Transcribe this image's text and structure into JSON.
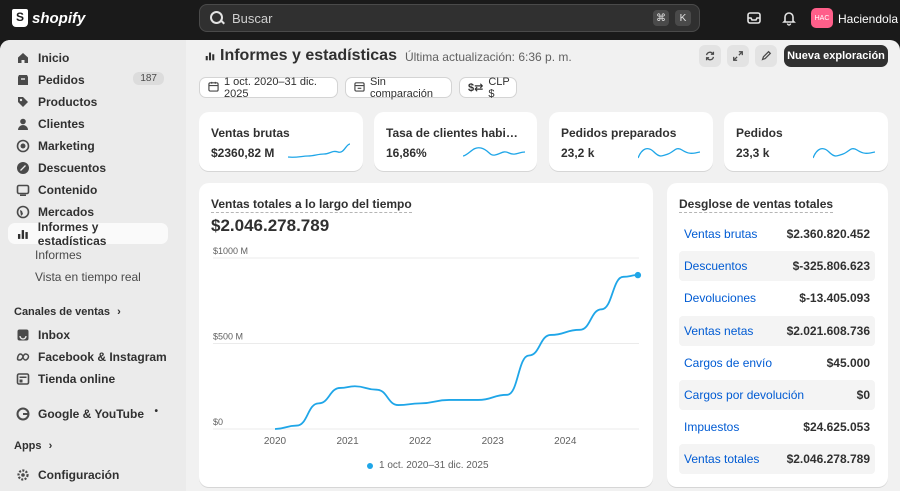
{
  "topbar": {
    "logo": "shopify",
    "search_placeholder": "Buscar",
    "kbd1": "⌘",
    "kbd2": "K",
    "avatar_initials": "HAC",
    "store_name": "Haciendola"
  },
  "sidebar": {
    "items": [
      {
        "label": "Inicio",
        "icon": "home-icon"
      },
      {
        "label": "Pedidos",
        "icon": "orders-icon",
        "badge": "187"
      },
      {
        "label": "Productos",
        "icon": "tag-icon"
      },
      {
        "label": "Clientes",
        "icon": "person-icon"
      },
      {
        "label": "Marketing",
        "icon": "target-icon"
      },
      {
        "label": "Descuentos",
        "icon": "discount-icon"
      },
      {
        "label": "Contenido",
        "icon": "content-icon"
      },
      {
        "label": "Mercados",
        "icon": "globe-icon"
      },
      {
        "label": "Informes y estadísticas",
        "icon": "chart-icon"
      }
    ],
    "sub_items": [
      "Informes",
      "Vista en tiempo real"
    ],
    "channels_header": "Canales de ventas",
    "channels": [
      {
        "label": "Inbox",
        "icon": "inbox-icon"
      },
      {
        "label": "Facebook & Instagram",
        "icon": "meta-icon"
      },
      {
        "label": "Tienda online",
        "icon": "store-icon"
      }
    ],
    "google": "Google & YouTube",
    "apps_header": "Apps",
    "settings": "Configuración"
  },
  "header": {
    "title": "Informes y estadísticas",
    "updated": "Última actualización: 6:36 p. m.",
    "primary_button": "Nueva exploración"
  },
  "filters": {
    "date_range": "1 oct. 2020–31 dic. 2025",
    "comparison": "Sin comparación",
    "currency": "CLP $"
  },
  "kpis": [
    {
      "title": "Ventas brutas",
      "value": "$2360,82 M"
    },
    {
      "title": "Tasa de clientes habituales",
      "value": "16,86%"
    },
    {
      "title": "Pedidos preparados",
      "value": "23,2 k"
    },
    {
      "title": "Pedidos",
      "value": "23,3 k"
    }
  ],
  "chart": {
    "title": "Ventas totales a lo largo del tiempo",
    "total": "$2.046.278.789",
    "legend": "1 oct. 2020–31 dic. 2025",
    "color": "#1fa6e8"
  },
  "chart_data": {
    "type": "line",
    "title": "Ventas totales a lo largo del tiempo",
    "x_ticks": [
      "2020",
      "2021",
      "2022",
      "2023",
      "2024"
    ],
    "y_ticks": [
      "$1000 M",
      "$500 M",
      "$0"
    ],
    "ylim": [
      0,
      1000
    ],
    "series": [
      {
        "name": "1 oct. 2020–31 dic. 2025",
        "points": [
          [
            2020.0,
            0
          ],
          [
            2020.3,
            20
          ],
          [
            2020.6,
            150
          ],
          [
            2020.9,
            240
          ],
          [
            2021.1,
            250
          ],
          [
            2021.4,
            230
          ],
          [
            2021.7,
            140
          ],
          [
            2022.0,
            150
          ],
          [
            2022.4,
            170
          ],
          [
            2022.8,
            170
          ],
          [
            2023.2,
            200
          ],
          [
            2023.5,
            430
          ],
          [
            2023.8,
            550
          ],
          [
            2024.2,
            580
          ],
          [
            2024.5,
            700
          ],
          [
            2024.8,
            890
          ],
          [
            2025.0,
            900
          ]
        ]
      }
    ],
    "grid": true
  },
  "breakdown": {
    "title": "Desglose de ventas totales",
    "rows": [
      {
        "label": "Ventas brutas",
        "value": "$2.360.820.452"
      },
      {
        "label": "Descuentos",
        "value": "$-325.806.623"
      },
      {
        "label": "Devoluciones",
        "value": "$-13.405.093"
      },
      {
        "label": "Ventas netas",
        "value": "$2.021.608.736"
      },
      {
        "label": "Cargos de envío",
        "value": "$45.000"
      },
      {
        "label": "Cargos por devolución",
        "value": "$0"
      },
      {
        "label": "Impuestos",
        "value": "$24.625.053"
      },
      {
        "label": "Ventas totales",
        "value": "$2.046.278.789"
      }
    ]
  }
}
